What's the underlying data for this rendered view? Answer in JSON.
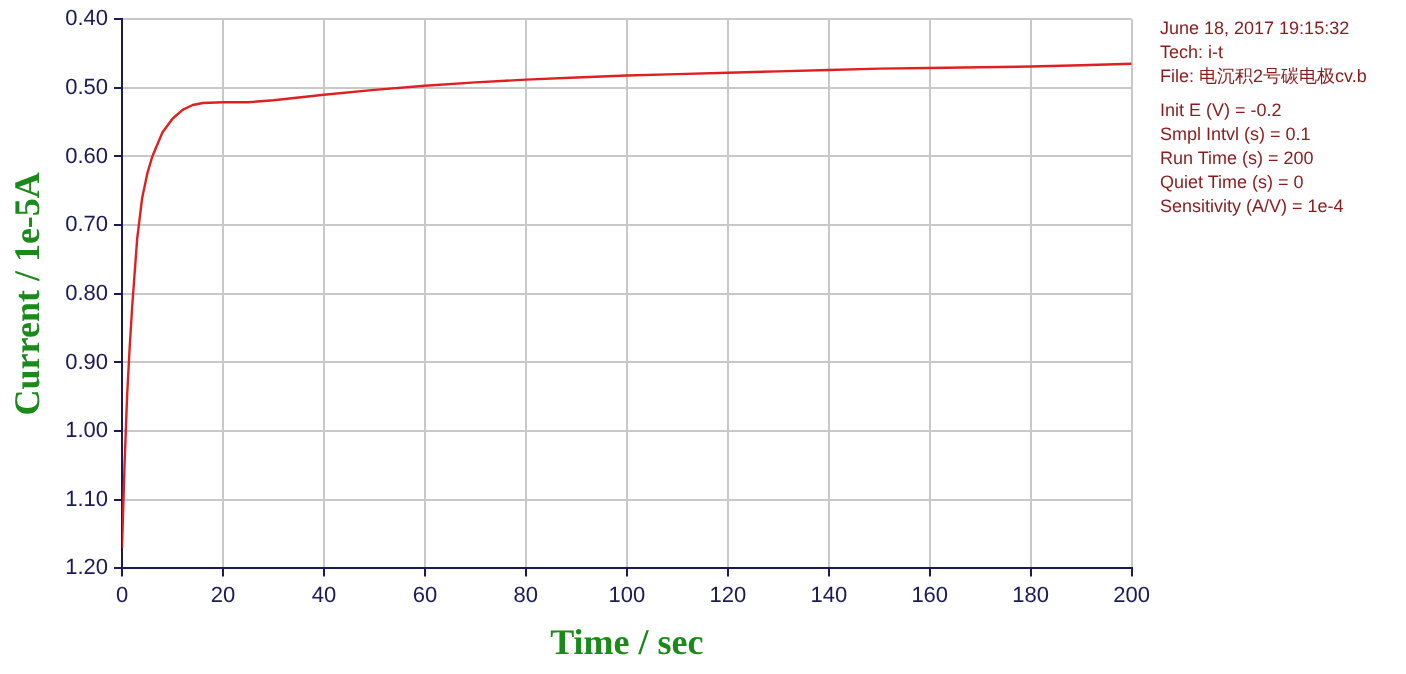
{
  "chart_data": {
    "type": "line",
    "xlabel": "Time / sec",
    "ylabel": "Current / 1e-5A",
    "annotations": [
      "June 18, 2017   19:15:32",
      "Tech: i-t",
      "File: 电沉积2号碳电极cv.b",
      "Init E (V) = -0.2",
      "Smpl Intvl (s) = 0.1",
      "Run Time (s) = 200",
      "Quiet Time (s) = 0",
      "Sensitivity (A/V) = 1e-4"
    ],
    "x": [
      0,
      0.5,
      1,
      1.5,
      2,
      3,
      4,
      5,
      6,
      8,
      10,
      12,
      14,
      16,
      20,
      25,
      30,
      40,
      50,
      60,
      70,
      80,
      90,
      100,
      110,
      120,
      130,
      140,
      150,
      160,
      170,
      180,
      190,
      200
    ],
    "series": [
      {
        "color": "#e02020",
        "values": [
          1.17,
          1.05,
          0.95,
          0.88,
          0.82,
          0.72,
          0.66,
          0.625,
          0.6,
          0.565,
          0.545,
          0.532,
          0.525,
          0.522,
          0.521,
          0.521,
          0.518,
          0.51,
          0.503,
          0.497,
          0.492,
          0.488,
          0.485,
          0.482,
          0.48,
          0.478,
          0.476,
          0.474,
          0.472,
          0.471,
          0.47,
          0.469,
          0.467,
          0.465
        ]
      }
    ],
    "xlim": [
      0,
      200
    ],
    "xticks": [
      0,
      20,
      40,
      60,
      80,
      100,
      120,
      140,
      160,
      180,
      200
    ],
    "ylim": [
      1.2,
      0.4
    ],
    "yticks": [
      {
        "value": 0.4,
        "label": "0.40"
      },
      {
        "value": 0.5,
        "label": "0.50"
      },
      {
        "value": 0.6,
        "label": "0.60"
      },
      {
        "value": 0.7,
        "label": "0.70"
      },
      {
        "value": 0.8,
        "label": "0.80"
      },
      {
        "value": 0.9,
        "label": "0.90"
      },
      {
        "value": 1.0,
        "label": "1.00"
      },
      {
        "value": 1.1,
        "label": "1.10"
      },
      {
        "value": 1.2,
        "label": "1.20"
      }
    ],
    "grid": true,
    "legend": false,
    "marker": "none",
    "line_style": "solid"
  }
}
